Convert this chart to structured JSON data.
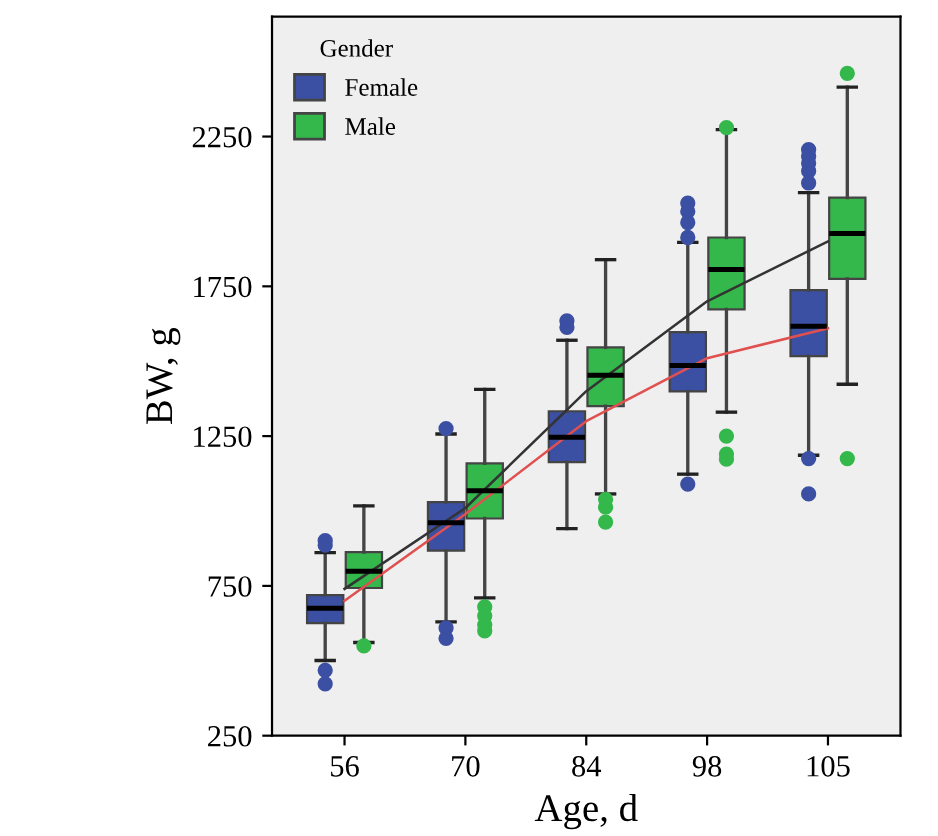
{
  "chart_data": {
    "type": "box",
    "xlabel": "Age, d",
    "ylabel": "BW, g",
    "legend_title": "Gender",
    "legend": "top left",
    "grid": false,
    "categories": [
      "56",
      "70",
      "84",
      "98",
      "105"
    ],
    "ylim": [
      250,
      2650
    ],
    "yticks": [
      250,
      750,
      1250,
      1750,
      2250
    ],
    "series": [
      {
        "name": "Female",
        "color": "#3b4fa3",
        "boxes": [
          {
            "low": 501,
            "q1": 626,
            "median": 675,
            "q3": 719,
            "high": 861,
            "outliers": [
              901,
              886,
              468,
              423
            ]
          },
          {
            "low": 630,
            "q1": 868,
            "median": 961,
            "q3": 1030,
            "high": 1257,
            "outliers": [
              1275,
              610,
              575
            ]
          },
          {
            "low": 941,
            "q1": 1163,
            "median": 1246,
            "q3": 1333,
            "high": 1570,
            "outliers": [
              1635,
              1613
            ]
          },
          {
            "low": 1123,
            "q1": 1399,
            "median": 1486,
            "q3": 1597,
            "high": 1897,
            "outliers": [
              2028,
              2000,
              1963,
              1913,
              1090
            ]
          },
          {
            "low": 1186,
            "q1": 1517,
            "median": 1617,
            "q3": 1737,
            "high": 2063,
            "outliers": [
              2206,
              2183,
              2161,
              2135,
              2095,
              1175,
              1057
            ]
          }
        ]
      },
      {
        "name": "Male",
        "color": "#34b84b",
        "boxes": [
          {
            "low": 561,
            "q1": 743,
            "median": 799,
            "q3": 863,
            "high": 1017,
            "outliers": [
              550
            ]
          },
          {
            "low": 710,
            "q1": 975,
            "median": 1068,
            "q3": 1159,
            "high": 1406,
            "outliers": [
              680,
              650,
              620,
              600
            ]
          },
          {
            "low": 1057,
            "q1": 1350,
            "median": 1453,
            "q3": 1546,
            "high": 1839,
            "outliers": [
              1039,
              1013,
              963
            ]
          },
          {
            "low": 1330,
            "q1": 1673,
            "median": 1806,
            "q3": 1913,
            "high": 2273,
            "outliers": [
              2280,
              1250,
              1190,
              1173
            ]
          },
          {
            "low": 1423,
            "q1": 1775,
            "median": 1926,
            "q3": 2046,
            "high": 2415,
            "outliers": [
              2461,
              1175
            ]
          }
        ]
      },
      {
        "type": "line",
        "color": "#333333",
        "x": [
          "56",
          "70",
          "84",
          "98",
          "105"
        ],
        "values": [
          740,
          1010,
          1400,
          1700,
          1900
        ]
      },
      {
        "type": "line",
        "color": "#e05050",
        "x": [
          "56",
          "70",
          "84",
          "98",
          "105"
        ],
        "values": [
          700,
          990,
          1300,
          1510,
          1610
        ]
      }
    ]
  }
}
